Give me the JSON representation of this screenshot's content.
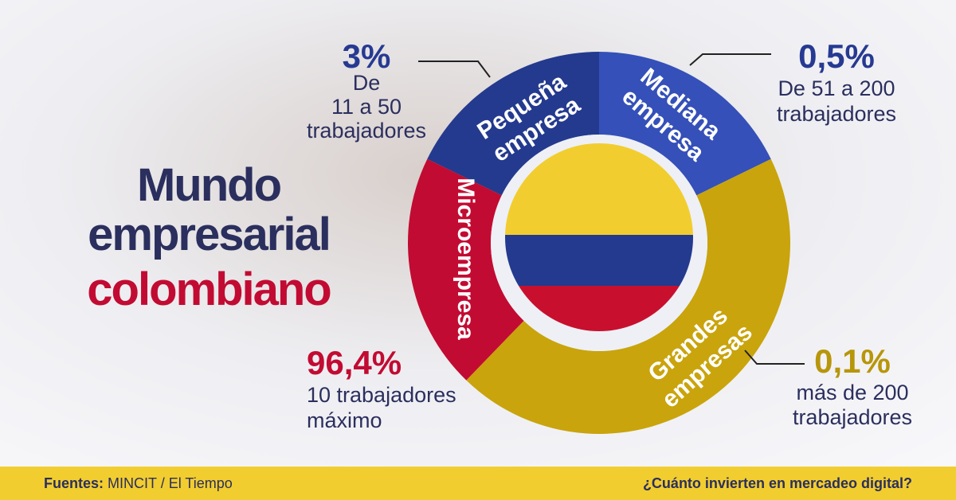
{
  "title": {
    "lines": [
      "Mundo",
      "empresarial",
      "colombiano"
    ]
  },
  "segments": [
    {
      "name": [
        "Pequeña",
        "empresa"
      ],
      "percent": "3%",
      "description": [
        "De",
        "11 a 50",
        "trabajadores"
      ]
    },
    {
      "name": [
        "Mediana",
        "empresa"
      ],
      "percent": "0,5%",
      "description": [
        "De 51 a 200",
        "trabajadores"
      ]
    },
    {
      "name": [
        "Grandes",
        "empresas"
      ],
      "percent": "0,1%",
      "description": [
        "más de 200",
        "trabajadores"
      ]
    },
    {
      "name": [
        "Microempresa"
      ],
      "percent": "96,4%",
      "description": [
        "10 trabajadores",
        "máximo"
      ]
    }
  ],
  "footer": {
    "source_label": "Fuentes:",
    "source": "MINCIT / El Tiempo",
    "question": "¿Cuánto invierten en mercadeo digital?"
  }
}
